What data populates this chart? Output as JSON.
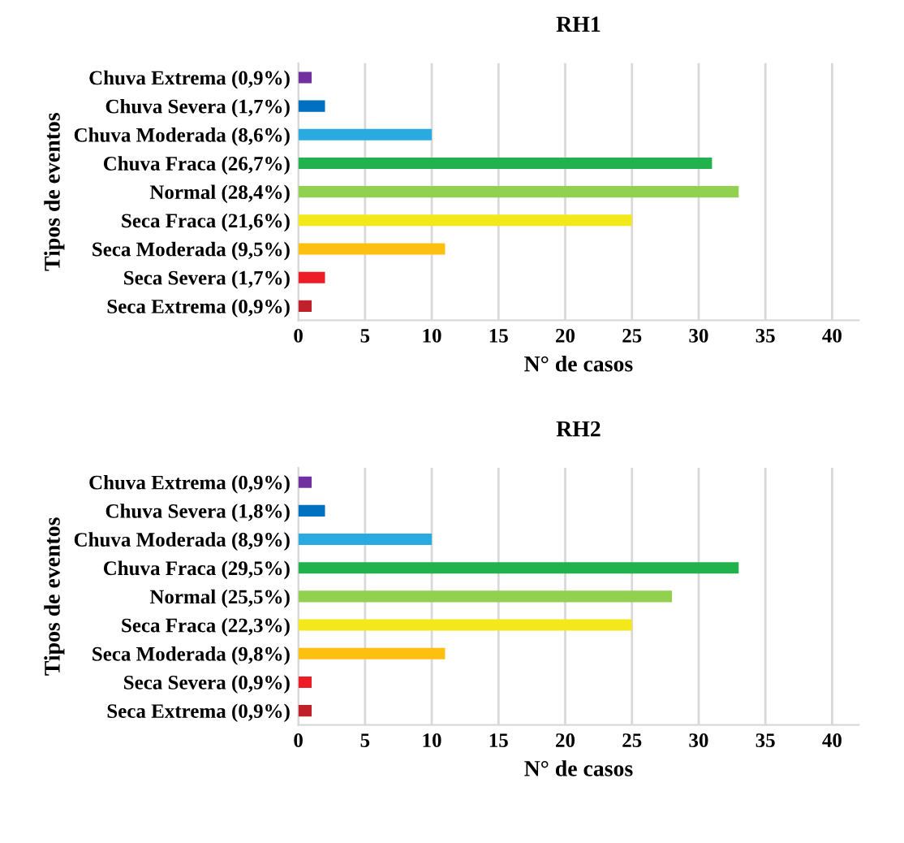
{
  "chart_data": [
    {
      "type": "bar",
      "orientation": "horizontal",
      "title": "RH1",
      "xlabel": "N° de casos",
      "ylabel": "Tipos de eventos",
      "categories": [
        "Chuva Extrema (0,9%)",
        "Chuva Severa (1,7%)",
        "Chuva Moderada (8,6%)",
        "Chuva Fraca (26,7%)",
        "Normal (28,4%)",
        "Seca Fraca (21,6%)",
        "Seca Moderada (9,5%)",
        "Seca Severa (1,7%)",
        "Seca Extrema (0,9%)"
      ],
      "values": [
        1,
        2,
        10,
        31,
        33,
        25,
        11,
        2,
        1
      ],
      "colors": [
        "#7030a0",
        "#0070c0",
        "#29abe2",
        "#21b24e",
        "#92d050",
        "#f2e81a",
        "#fdc010",
        "#ee1c24",
        "#c0202a"
      ],
      "xlim": [
        0,
        42
      ],
      "xticks": [
        0,
        5,
        10,
        15,
        20,
        25,
        30,
        35,
        40
      ],
      "grid": "x",
      "legend": false
    },
    {
      "type": "bar",
      "orientation": "horizontal",
      "title": "RH2",
      "xlabel": "N° de casos",
      "ylabel": "Tipos de eventos",
      "categories": [
        "Chuva Extrema (0,9%)",
        "Chuva Severa (1,8%)",
        "Chuva Moderada (8,9%)",
        "Chuva Fraca (29,5%)",
        "Normal (25,5%)",
        "Seca Fraca (22,3%)",
        "Seca Moderada (9,8%)",
        "Seca Severa (0,9%)",
        "Seca Extrema (0,9%)"
      ],
      "values": [
        1,
        2,
        10,
        33,
        28,
        25,
        11,
        1,
        1
      ],
      "colors": [
        "#7030a0",
        "#0070c0",
        "#29abe2",
        "#21b24e",
        "#92d050",
        "#f2e81a",
        "#fdc010",
        "#ee1c24",
        "#c0202a"
      ],
      "xlim": [
        0,
        42
      ],
      "xticks": [
        0,
        5,
        10,
        15,
        20,
        25,
        30,
        35,
        40
      ],
      "grid": "x",
      "legend": false
    }
  ]
}
